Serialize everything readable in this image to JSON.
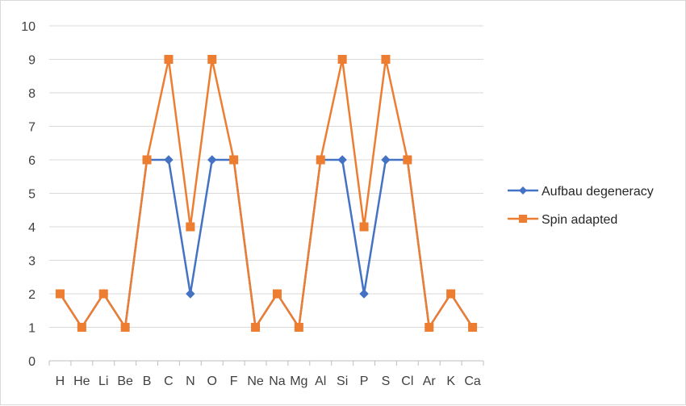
{
  "chart_data": {
    "type": "line",
    "categories": [
      "H",
      "He",
      "Li",
      "Be",
      "B",
      "C",
      "N",
      "O",
      "F",
      "Ne",
      "Na",
      "Mg",
      "Al",
      "Si",
      "P",
      "S",
      "Cl",
      "Ar",
      "K",
      "Ca"
    ],
    "ylim": [
      0,
      10
    ],
    "yticks": [
      0,
      1,
      2,
      3,
      4,
      5,
      6,
      7,
      8,
      9,
      10
    ],
    "grid": true,
    "legend_position": "right",
    "series": [
      {
        "name": "Aufbau degeneracy",
        "color": "#4472c4",
        "marker": "diamond",
        "values": [
          2,
          1,
          2,
          1,
          6,
          6,
          2,
          6,
          6,
          1,
          2,
          1,
          6,
          6,
          2,
          6,
          6,
          1,
          2,
          1
        ]
      },
      {
        "name": "Spin adapted",
        "color": "#ed7d31",
        "marker": "square",
        "values": [
          2,
          1,
          2,
          1,
          6,
          9,
          4,
          9,
          6,
          1,
          2,
          1,
          6,
          9,
          4,
          9,
          6,
          1,
          2,
          1
        ]
      }
    ]
  }
}
